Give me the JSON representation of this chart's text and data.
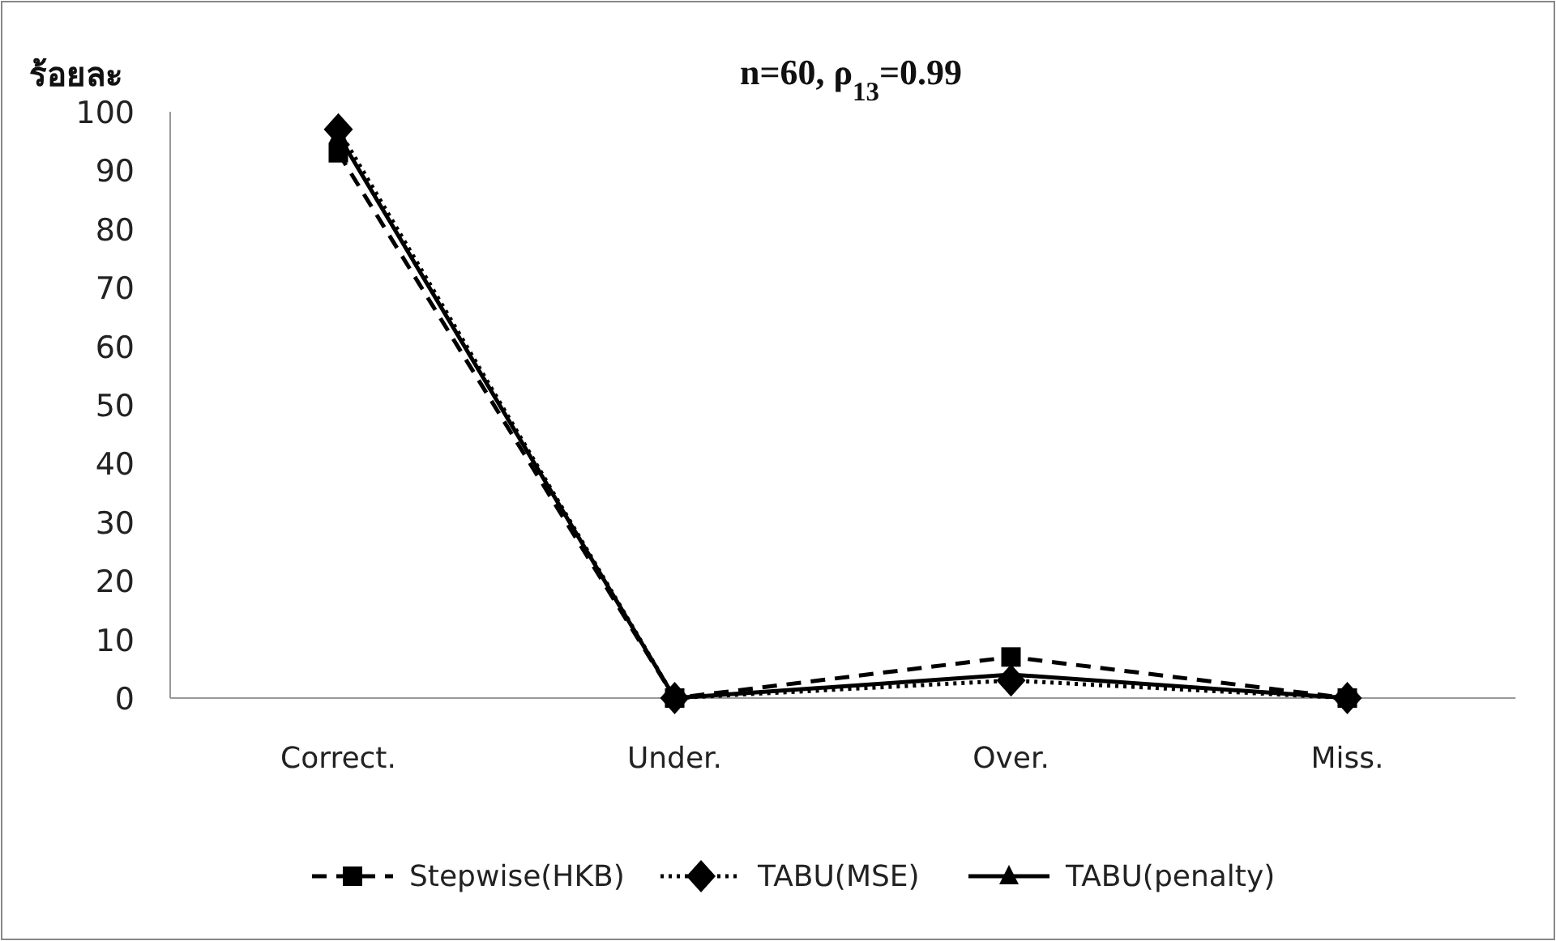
{
  "chart_data": {
    "type": "line",
    "title": "n=60, ρ$_{13}$=0.99",
    "ylabel": "ร้อยละ",
    "categories": [
      "Correct.",
      "Under.",
      "Over.",
      "Miss."
    ],
    "series": [
      {
        "name": "Stepwise(HKB)",
        "color": "#000000",
        "values": [
          93,
          0,
          7,
          0
        ],
        "marker": "square",
        "line_style": "dashed"
      },
      {
        "name": "TABU(MSE)",
        "color": "#000000",
        "values": [
          97,
          0,
          3,
          0
        ],
        "marker": "diamond",
        "line_style": "dotted"
      },
      {
        "name": "TABU(penalty)",
        "color": "#000000",
        "values": [
          96,
          0,
          4,
          0
        ],
        "marker": "triangle",
        "line_style": "solid"
      }
    ],
    "ylim": [
      0,
      100
    ],
    "yticks": [
      0,
      10,
      20,
      30,
      40,
      50,
      60,
      70,
      80,
      90,
      100
    ],
    "grid": false,
    "legend": "bottom"
  }
}
